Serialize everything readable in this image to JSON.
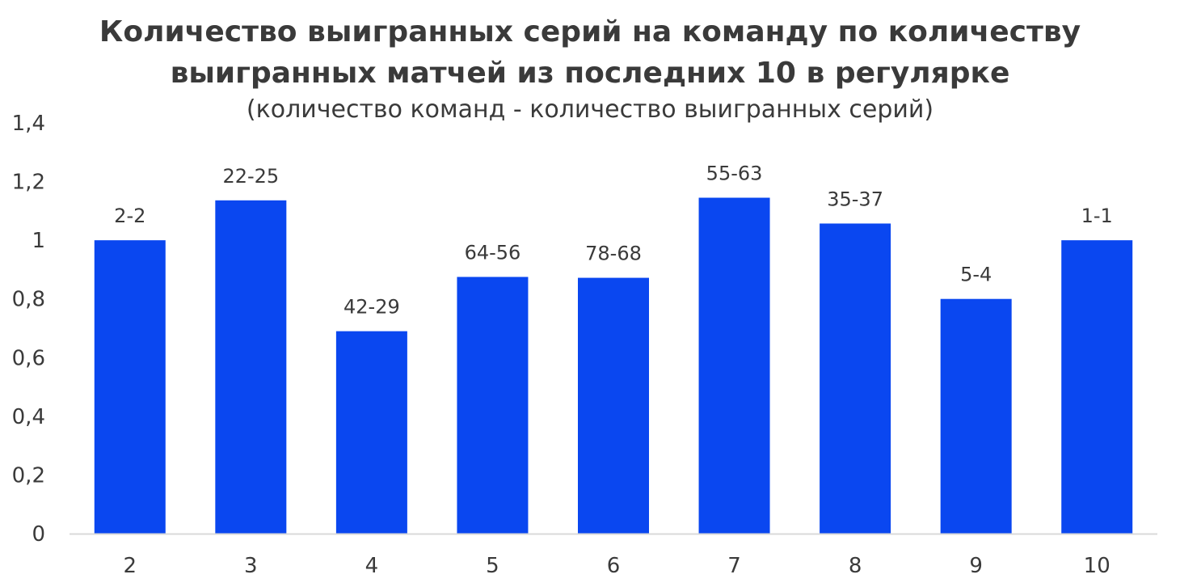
{
  "chart_data": {
    "type": "bar",
    "title_lines": [
      "Количество выигранных серий на команду по количеству",
      "выигранных матчей из последних 10 в регулярке"
    ],
    "subtitle": "(количество команд - количество выигранных серий)",
    "xlabel": "",
    "ylabel": "",
    "categories": [
      "2",
      "3",
      "4",
      "5",
      "6",
      "7",
      "8",
      "9",
      "10"
    ],
    "values": [
      1.0,
      1.136,
      0.69,
      0.875,
      0.872,
      1.145,
      1.057,
      0.8,
      1.0
    ],
    "data_labels": [
      "2-2",
      "22-25",
      "42-29",
      "64-56",
      "78-68",
      "55-63",
      "35-37",
      "5-4",
      "1-1"
    ],
    "ylim": [
      0,
      1.4
    ],
    "yticks": [
      "0",
      "0,2",
      "0,4",
      "0,6",
      "0,8",
      "1",
      "1,2",
      "1,4"
    ],
    "grid": false,
    "legend": "none",
    "bar_color": "#0a47f0",
    "text_color": "#3a3a3a",
    "axis_color": "#d9d9d9"
  }
}
